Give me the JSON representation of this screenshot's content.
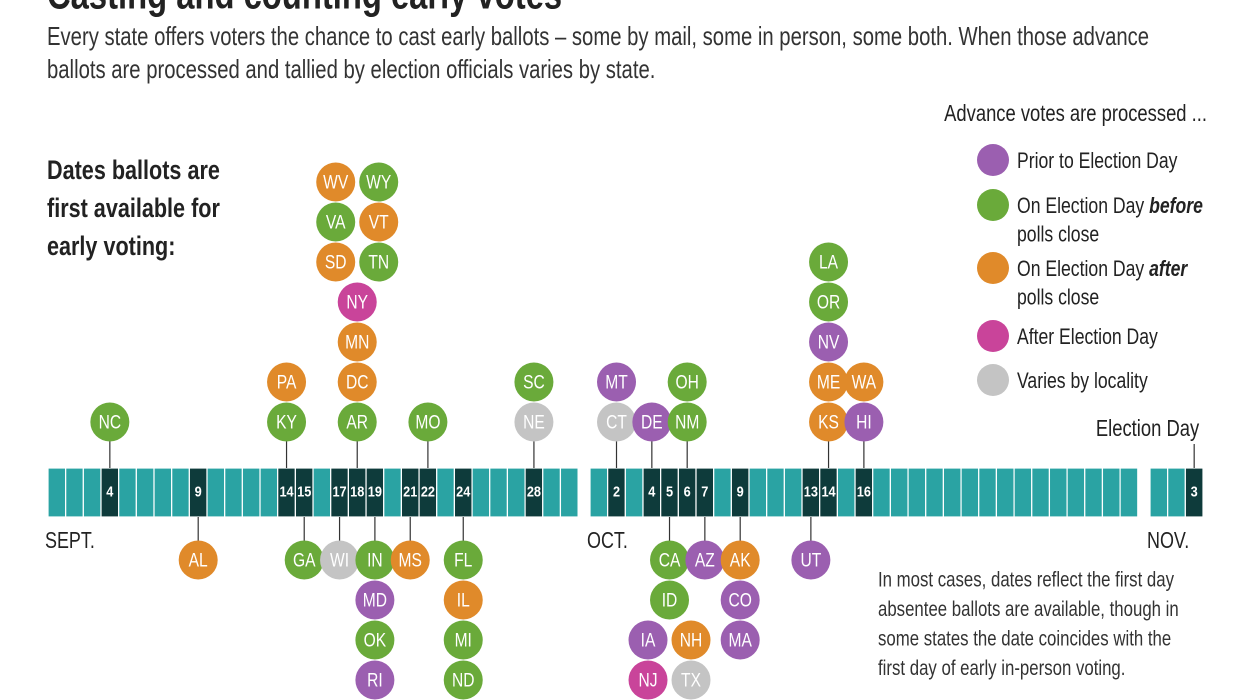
{
  "header": {
    "title": "Casting and counting early votes",
    "subtitle_lines": [
      "Every state offers voters the chance to cast early ballots – some by mail, some in person, some both. When those advance",
      "ballots are processed and tallied by election officials varies by state."
    ]
  },
  "timeline": {
    "label_lines": [
      "Dates ballots are",
      "first available for",
      "early voting:"
    ],
    "months": [
      {
        "label": "SEPT.",
        "days": 30,
        "dates": [
          {
            "day": 4,
            "above": [
              [
                {
                  "code": "NC",
                  "color": "#6aaa3a"
                }
              ]
            ]
          },
          {
            "day": 9,
            "below": [
              [
                {
                  "code": "AL",
                  "color": "#e08a2a"
                }
              ]
            ]
          },
          {
            "day": 14,
            "above": [
              [
                {
                  "code": "KY",
                  "color": "#6aaa3a"
                }
              ],
              [
                {
                  "code": "PA",
                  "color": "#e08a2a"
                }
              ]
            ]
          },
          {
            "day": 15,
            "below": [
              [
                {
                  "code": "GA",
                  "color": "#6aaa3a"
                }
              ]
            ]
          },
          {
            "day": 17,
            "below": [
              [
                {
                  "code": "WI",
                  "color": "#c4c4c4"
                }
              ]
            ]
          },
          {
            "day": 18,
            "above": [
              [
                {
                  "code": "AR",
                  "color": "#6aaa3a"
                }
              ],
              [
                {
                  "code": "DC",
                  "color": "#e08a2a"
                }
              ],
              [
                {
                  "code": "MN",
                  "color": "#e08a2a"
                }
              ],
              [
                {
                  "code": "NY",
                  "color": "#c9449a"
                }
              ],
              [
                {
                  "code": "SD",
                  "color": "#e08a2a"
                },
                {
                  "code": "TN",
                  "color": "#6aaa3a"
                }
              ],
              [
                {
                  "code": "VA",
                  "color": "#6aaa3a"
                },
                {
                  "code": "VT",
                  "color": "#e08a2a"
                }
              ],
              [
                {
                  "code": "WV",
                  "color": "#e08a2a"
                },
                {
                  "code": "WY",
                  "color": "#6aaa3a"
                }
              ]
            ]
          },
          {
            "day": 19,
            "below": [
              [
                {
                  "code": "IN",
                  "color": "#6aaa3a"
                }
              ],
              [
                {
                  "code": "MD",
                  "color": "#9b5fb0"
                }
              ],
              [
                {
                  "code": "OK",
                  "color": "#6aaa3a"
                }
              ],
              [
                {
                  "code": "RI",
                  "color": "#9b5fb0"
                }
              ]
            ]
          },
          {
            "day": 21,
            "below": [
              [
                {
                  "code": "MS",
                  "color": "#e08a2a"
                }
              ]
            ]
          },
          {
            "day": 22,
            "above": [
              [
                {
                  "code": "MO",
                  "color": "#6aaa3a"
                }
              ]
            ]
          },
          {
            "day": 24,
            "below": [
              [
                {
                  "code": "FL",
                  "color": "#6aaa3a"
                }
              ],
              [
                {
                  "code": "IL",
                  "color": "#e08a2a"
                }
              ],
              [
                {
                  "code": "MI",
                  "color": "#6aaa3a"
                }
              ],
              [
                {
                  "code": "ND",
                  "color": "#6aaa3a"
                }
              ]
            ]
          },
          {
            "day": 28,
            "above": [
              [
                {
                  "code": "NE",
                  "color": "#c4c4c4"
                }
              ],
              [
                {
                  "code": "SC",
                  "color": "#6aaa3a"
                }
              ]
            ]
          }
        ]
      },
      {
        "label": "OCT.",
        "days": 31,
        "dates": [
          {
            "day": 2,
            "above": [
              [
                {
                  "code": "CT",
                  "color": "#c4c4c4"
                }
              ],
              [
                {
                  "code": "MT",
                  "color": "#9b5fb0"
                }
              ]
            ]
          },
          {
            "day": 4,
            "above": [
              [
                {
                  "code": "DE",
                  "color": "#9b5fb0"
                }
              ]
            ]
          },
          {
            "day": 5,
            "below": [
              [
                {
                  "code": "CA",
                  "color": "#6aaa3a"
                }
              ],
              [
                {
                  "code": "ID",
                  "color": "#6aaa3a"
                }
              ],
              [
                {
                  "code": "IA",
                  "color": "#9b5fb0"
                },
                {
                  "code": "NH",
                  "color": "#e08a2a"
                }
              ],
              [
                {
                  "code": "NJ",
                  "color": "#c9449a"
                },
                {
                  "code": "TX",
                  "color": "#c4c4c4"
                }
              ]
            ]
          },
          {
            "day": 6,
            "above": [
              [
                {
                  "code": "NM",
                  "color": "#6aaa3a"
                }
              ],
              [
                {
                  "code": "OH",
                  "color": "#6aaa3a"
                }
              ]
            ]
          },
          {
            "day": 7,
            "below": [
              [
                {
                  "code": "AZ",
                  "color": "#9b5fb0"
                }
              ]
            ]
          },
          {
            "day": 9,
            "below": [
              [
                {
                  "code": "AK",
                  "color": "#e08a2a"
                }
              ],
              [
                {
                  "code": "CO",
                  "color": "#9b5fb0"
                }
              ],
              [
                {
                  "code": "MA",
                  "color": "#9b5fb0"
                }
              ]
            ]
          },
          {
            "day": 13,
            "below": [
              [
                {
                  "code": "UT",
                  "color": "#9b5fb0"
                }
              ]
            ]
          },
          {
            "day": 14,
            "above": [
              [
                {
                  "code": "KS",
                  "color": "#e08a2a"
                }
              ],
              [
                {
                  "code": "ME",
                  "color": "#e08a2a"
                }
              ],
              [
                {
                  "code": "NV",
                  "color": "#9b5fb0"
                }
              ],
              [
                {
                  "code": "OR",
                  "color": "#6aaa3a"
                }
              ],
              [
                {
                  "code": "LA",
                  "color": "#6aaa3a"
                }
              ]
            ]
          },
          {
            "day": 16,
            "above": [
              [
                {
                  "code": "HI",
                  "color": "#9b5fb0"
                }
              ],
              [
                {
                  "code": "WA",
                  "color": "#e08a2a"
                }
              ]
            ]
          }
        ]
      },
      {
        "label": "NOV.",
        "days": 3,
        "dates": [
          {
            "day": 3,
            "label": "Election Day"
          }
        ]
      }
    ]
  },
  "legend": {
    "title": "Advance votes are processed ...",
    "items": [
      {
        "text": "Prior to Election Day",
        "color": "#9b5fb0"
      },
      {
        "text": "On Election Day",
        "emphasis": "before",
        "continuation": "polls close",
        "color": "#6aaa3a"
      },
      {
        "text": "On Election Day",
        "emphasis": "after",
        "continuation": "polls close",
        "color": "#e08a2a"
      },
      {
        "text": "After Election Day",
        "color": "#c9449a"
      },
      {
        "text": "Varies by locality",
        "color": "#c4c4c4"
      }
    ]
  },
  "note_lines": [
    "In most cases, dates reflect the first day",
    "absentee ballots are available, though in",
    "some states the date coincides with the",
    "first day of early in-person voting."
  ]
}
